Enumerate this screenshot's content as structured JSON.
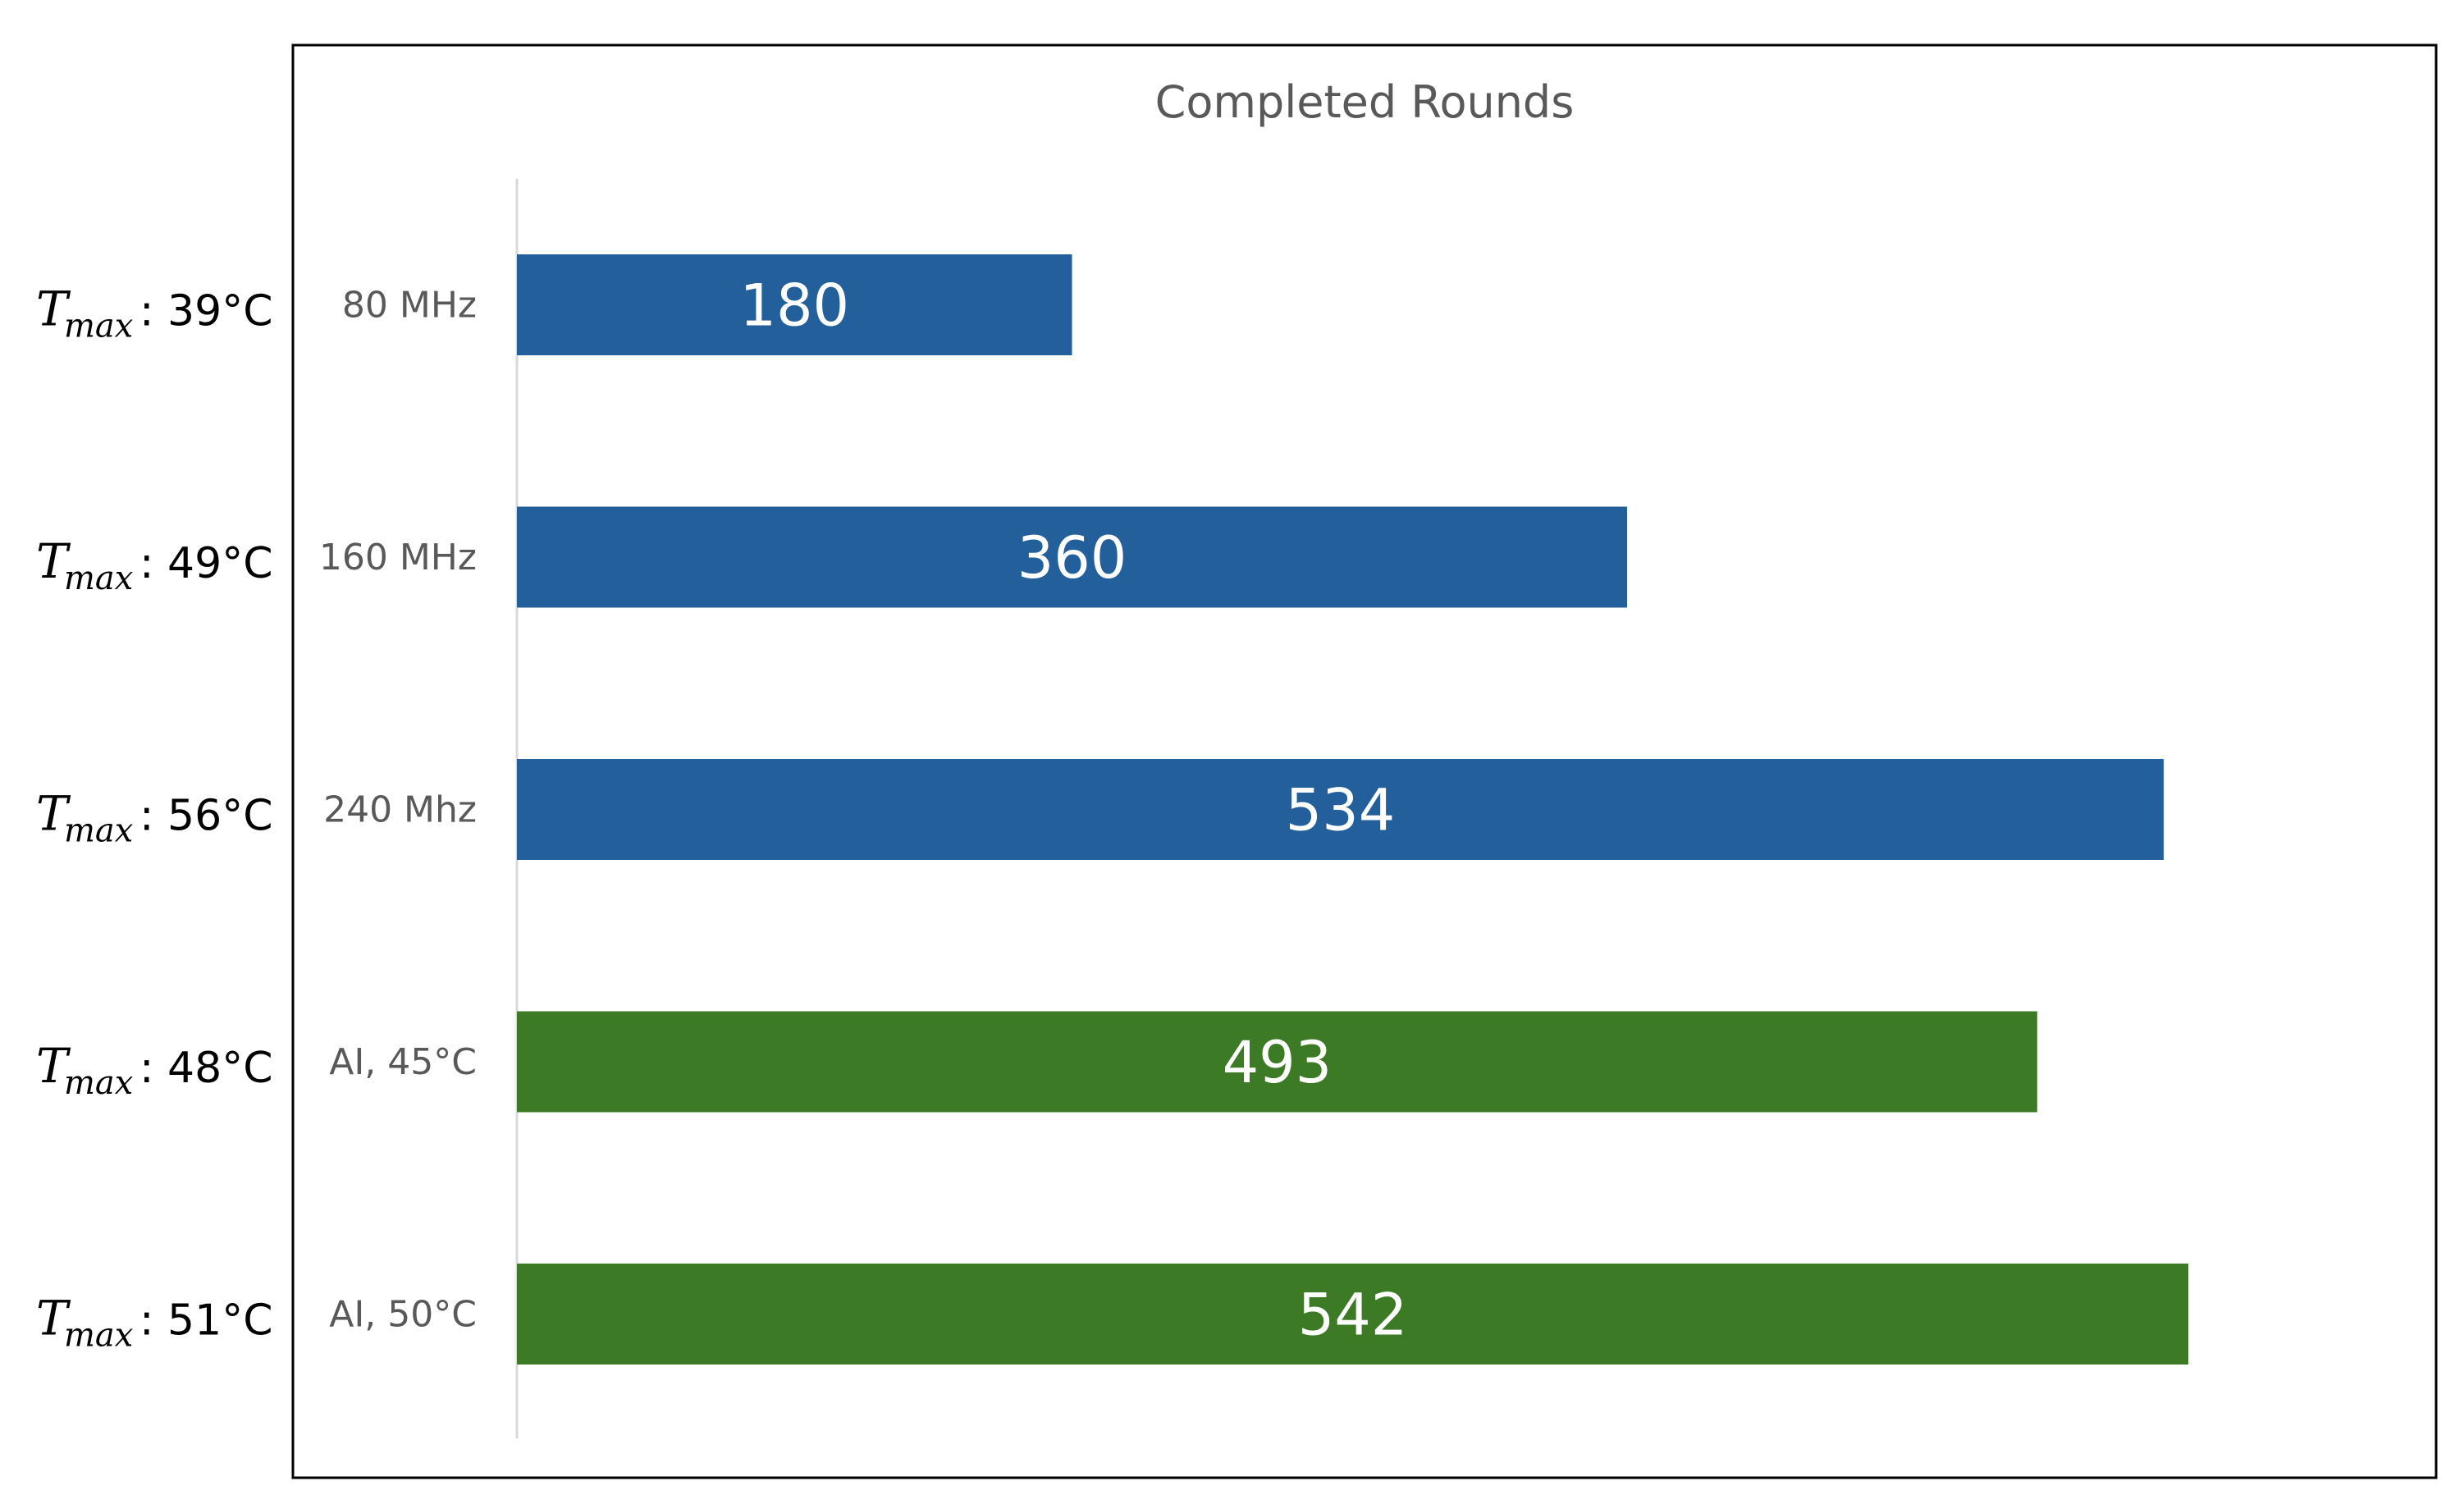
{
  "chart_data": {
    "type": "bar",
    "orientation": "horizontal",
    "title": "Completed Rounds",
    "categories": [
      "80 MHz",
      "160 MHz",
      "240 Mhz",
      "AI, 45°C",
      "AI, 50°C"
    ],
    "values": [
      180,
      360,
      534,
      493,
      542
    ],
    "data_labels": [
      "180",
      "360",
      "534",
      "493",
      "542"
    ],
    "bar_colors": [
      "#23609B",
      "#23609B",
      "#23609B",
      "#3D7A25",
      "#3D7A25"
    ],
    "xlim": [
      0,
      600
    ],
    "xlabel": "",
    "ylabel": "",
    "grid": false,
    "legend": "none",
    "side_annotations": [
      {
        "symbol": "T",
        "subscript": "max",
        "text": ": 39°C"
      },
      {
        "symbol": "T",
        "subscript": "max",
        "text": ": 49°C"
      },
      {
        "symbol": "T",
        "subscript": "max",
        "text": ": 56°C"
      },
      {
        "symbol": "T",
        "subscript": "max",
        "text": ": 48°C"
      },
      {
        "symbol": "T",
        "subscript": "max",
        "text": ": 51°C"
      }
    ]
  }
}
